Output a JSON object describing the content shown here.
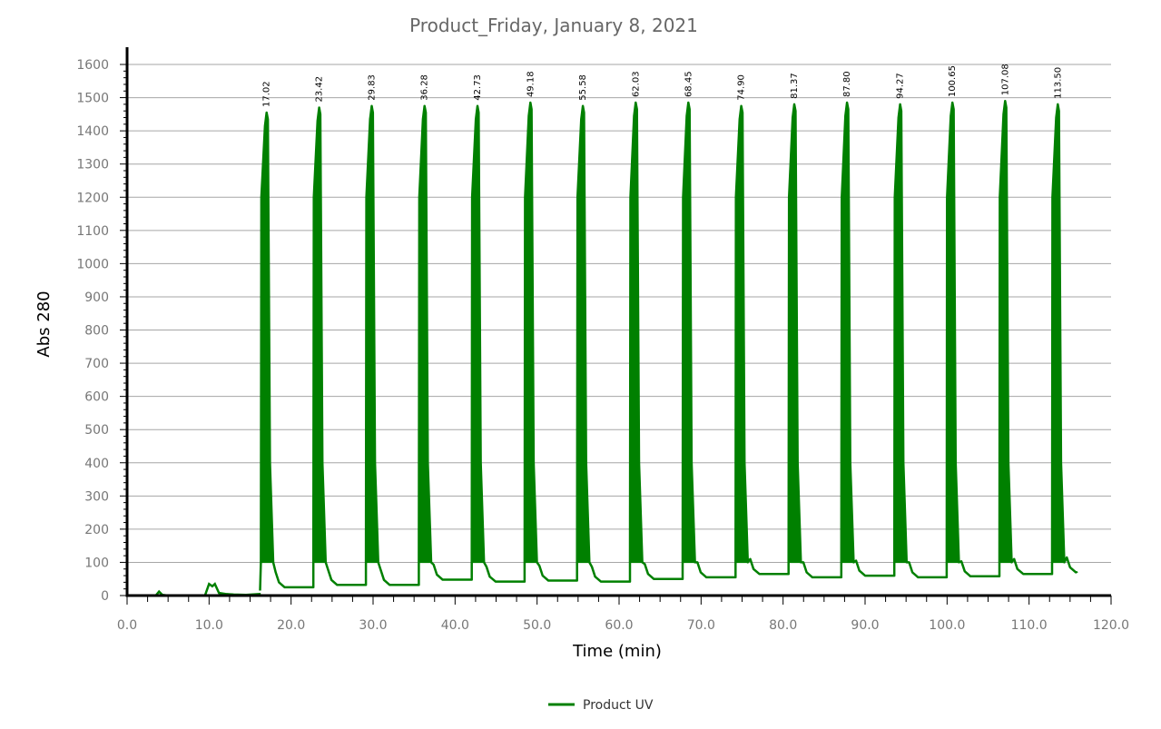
{
  "chart_data": {
    "type": "line",
    "title": "Product_Friday, January 8, 2021",
    "xlabel": "Time (min)",
    "ylabel": "Abs 280",
    "xlim": [
      0,
      120
    ],
    "ylim": [
      0,
      1600
    ],
    "xticks": [
      0,
      10,
      20,
      30,
      40,
      50,
      60,
      70,
      80,
      90,
      100,
      110,
      120
    ],
    "xtick_labels": [
      "0.0",
      "10.0",
      "20.0",
      "30.0",
      "40.0",
      "50.0",
      "60.0",
      "70.0",
      "80.0",
      "90.0",
      "100.0",
      "110.0",
      "120.0"
    ],
    "yticks": [
      0,
      100,
      200,
      300,
      400,
      500,
      600,
      700,
      800,
      900,
      1000,
      1100,
      1200,
      1300,
      1400,
      1500,
      1600
    ],
    "ytick_labels": [
      "0",
      "100",
      "200",
      "300",
      "400",
      "500",
      "600",
      "700",
      "800",
      "900",
      "1000",
      "1100",
      "1200",
      "1300",
      "1400",
      "1500",
      "1600"
    ],
    "grid": true,
    "legend_position": "bottom-center",
    "series": [
      {
        "name": "Product UV",
        "color": "#008000"
      }
    ],
    "peaks": [
      {
        "label": "17.02",
        "time": 17.02,
        "height": 1455,
        "baseline_after": 25
      },
      {
        "label": "23.42",
        "time": 23.42,
        "height": 1470,
        "baseline_after": 32
      },
      {
        "label": "29.83",
        "time": 29.83,
        "height": 1475,
        "baseline_after": 32
      },
      {
        "label": "36.28",
        "time": 36.28,
        "height": 1475,
        "baseline_after": 48
      },
      {
        "label": "42.73",
        "time": 42.73,
        "height": 1475,
        "baseline_after": 42
      },
      {
        "label": "49.18",
        "time": 49.18,
        "height": 1485,
        "baseline_after": 45
      },
      {
        "label": "55.58",
        "time": 55.58,
        "height": 1475,
        "baseline_after": 42
      },
      {
        "label": "62.03",
        "time": 62.03,
        "height": 1485,
        "baseline_after": 50
      },
      {
        "label": "68.45",
        "time": 68.45,
        "height": 1485,
        "baseline_after": 55
      },
      {
        "label": "74.90",
        "time": 74.9,
        "height": 1475,
        "baseline_after": 65
      },
      {
        "label": "81.37",
        "time": 81.37,
        "height": 1480,
        "baseline_after": 55
      },
      {
        "label": "87.80",
        "time": 87.8,
        "height": 1485,
        "baseline_after": 60
      },
      {
        "label": "94.27",
        "time": 94.27,
        "height": 1480,
        "baseline_after": 55
      },
      {
        "label": "100.65",
        "time": 100.65,
        "height": 1485,
        "baseline_after": 58
      },
      {
        "label": "107.08",
        "time": 107.08,
        "height": 1490,
        "baseline_after": 65
      },
      {
        "label": "113.50",
        "time": 113.5,
        "height": 1480,
        "baseline_after": 70
      }
    ],
    "initial_trace": [
      [
        0,
        0
      ],
      [
        3.5,
        0
      ],
      [
        3.9,
        12
      ],
      [
        4.3,
        2
      ],
      [
        5,
        0
      ],
      [
        9.5,
        0
      ],
      [
        10.0,
        35
      ],
      [
        10.4,
        28
      ],
      [
        10.7,
        35
      ],
      [
        11.2,
        8
      ],
      [
        12,
        5
      ],
      [
        13,
        3
      ],
      [
        14.5,
        2
      ],
      [
        16.3,
        5
      ]
    ],
    "end_time": 115.8,
    "end_value": 68
  }
}
